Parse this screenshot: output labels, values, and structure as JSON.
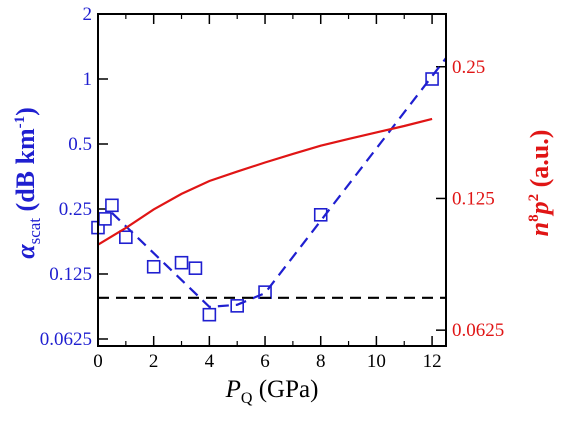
{
  "chart_data": {
    "type": "line",
    "title": "",
    "xlabel": {
      "var": "P",
      "sub": "Q",
      "unit": " (GPa)"
    },
    "ylabel_left": {
      "var": "α",
      "sub": "scat",
      "unit": " (dB km",
      "sup": "-1",
      "close": ")"
    },
    "ylabel_right": {
      "pre": "n",
      "sup1": "8",
      "mid": "p",
      "sup2": "2",
      "unit": " (a.u.)"
    },
    "xlim": [
      0,
      12.5
    ],
    "ylim_left": [
      0.058,
      2.0
    ],
    "ylim_right": [
      0.0575,
      0.33
    ],
    "y_left_log": true,
    "y_right_log": true,
    "x_ticks": [
      "0",
      "2",
      "4",
      "6",
      "8",
      "10",
      "12"
    ],
    "y_left_ticks": [
      "0.0625",
      "0.125",
      "0.25",
      "0.5",
      "1",
      "2"
    ],
    "y_right_ticks": [
      "0.0625",
      "0.125",
      "0.25"
    ],
    "colors": {
      "left_axis": "#1f1fd0",
      "right_axis": "#e01515",
      "frame": "#000000"
    },
    "series": [
      {
        "axis": "left",
        "style": "markers",
        "marker": "open-square",
        "color": "#1f1fd0",
        "x": [
          0.0,
          0.25,
          0.5,
          1.0,
          2.0,
          3.0,
          3.5,
          4.0,
          5.0,
          6.0,
          8.0,
          12.0
        ],
        "y": [
          0.205,
          0.225,
          0.26,
          0.185,
          0.135,
          0.141,
          0.133,
          0.081,
          0.089,
          0.103,
          0.235,
          1.0
        ]
      },
      {
        "axis": "left",
        "style": "dashed",
        "color": "#1f1fd0",
        "x": [
          0.5,
          4.0,
          5.0,
          6.0,
          12.5
        ],
        "y": [
          0.24,
          0.088,
          0.09,
          0.102,
          1.25
        ]
      },
      {
        "axis": "left",
        "style": "dashed",
        "color": "#000000",
        "x": [
          0.0,
          12.5
        ],
        "y": [
          0.097,
          0.097
        ]
      },
      {
        "axis": "right",
        "style": "solid",
        "color": "#e01515",
        "x": [
          0.0,
          1.0,
          2.0,
          3.0,
          4.0,
          5.0,
          6.0,
          7.0,
          8.0,
          9.0,
          10.0,
          11.0,
          12.0
        ],
        "y": [
          0.098,
          0.107,
          0.118,
          0.128,
          0.137,
          0.144,
          0.151,
          0.158,
          0.165,
          0.171,
          0.177,
          0.183,
          0.19
        ]
      }
    ]
  }
}
